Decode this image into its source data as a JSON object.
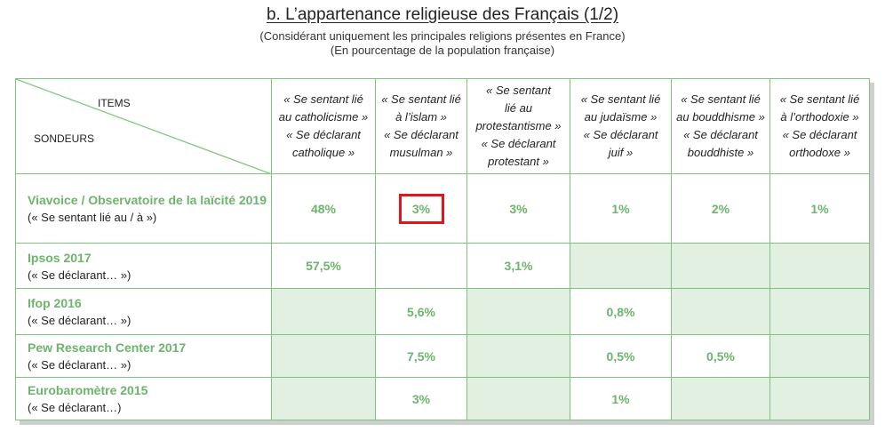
{
  "title": "b. L’appartenance religieuse des Français (1/2)",
  "subtitle_lines": [
    "(Considérant uniquement les principales religions présentes en France)",
    "(En pourcentage de la population française)"
  ],
  "header": {
    "items_label": "ITEMS",
    "sondeurs_label": "SONDEURS",
    "columns": [
      [
        "« Se sentant lié",
        "au catholicisme »",
        "« Se déclarant",
        "catholique »"
      ],
      [
        "« Se sentant lié",
        "à l’islam »",
        "« Se déclarant",
        "musulman »"
      ],
      [
        "« Se sentant",
        "lié au",
        "protestantisme »",
        "« Se déclarant",
        "protestant »"
      ],
      [
        "« Se sentant lié",
        "au judaïsme »",
        "« Se déclarant",
        "juif »"
      ],
      [
        "« Se sentant lié",
        "au bouddhisme »",
        "« Se déclarant",
        "bouddhiste »"
      ],
      [
        "« Se sentant lié",
        "à l’orthodoxie »",
        "« Se déclarant",
        "orthodoxe »"
      ]
    ]
  },
  "rows": [
    {
      "source": "Viavoice / Observatoire de la laïcité 2019",
      "note": "(« Se sentant lié au / à »)",
      "values": [
        "48%",
        "3%",
        "3%",
        "1%",
        "2%",
        "1%"
      ]
    },
    {
      "source": "Ipsos 2017",
      "note": "(« Se déclarant… »)",
      "values": [
        "57,5%",
        "",
        "3,1%",
        "",
        "",
        ""
      ]
    },
    {
      "source": "Ifop 2016",
      "note": "(« Se déclarant… »)",
      "values": [
        "",
        "5,6%",
        "",
        "0,8%",
        "",
        ""
      ]
    },
    {
      "source": "Pew Research Center 2017",
      "note": "(« Se déclarant… »)",
      "values": [
        "",
        "7,5%",
        "",
        "0,5%",
        "0,5%",
        ""
      ]
    },
    {
      "source": "Eurobaromètre 2015",
      "note": "(« Se déclarant…)",
      "values": [
        "",
        "3%",
        "",
        "1%",
        "",
        ""
      ]
    }
  ],
  "shaded_cells": [
    [
      1,
      3
    ],
    [
      1,
      4
    ],
    [
      1,
      5
    ],
    [
      2,
      0
    ],
    [
      2,
      2
    ],
    [
      2,
      4
    ],
    [
      2,
      5
    ],
    [
      3,
      0
    ],
    [
      3,
      2
    ],
    [
      3,
      5
    ],
    [
      4,
      0
    ],
    [
      4,
      2
    ],
    [
      4,
      4
    ],
    [
      4,
      5
    ]
  ],
  "highlighted_cell": [
    0,
    1
  ],
  "colors": {
    "accent_green": "#6db46c",
    "border_green": "#7cc47a",
    "shade_green": "#e2f0e1",
    "highlight_red": "#e0161b"
  }
}
